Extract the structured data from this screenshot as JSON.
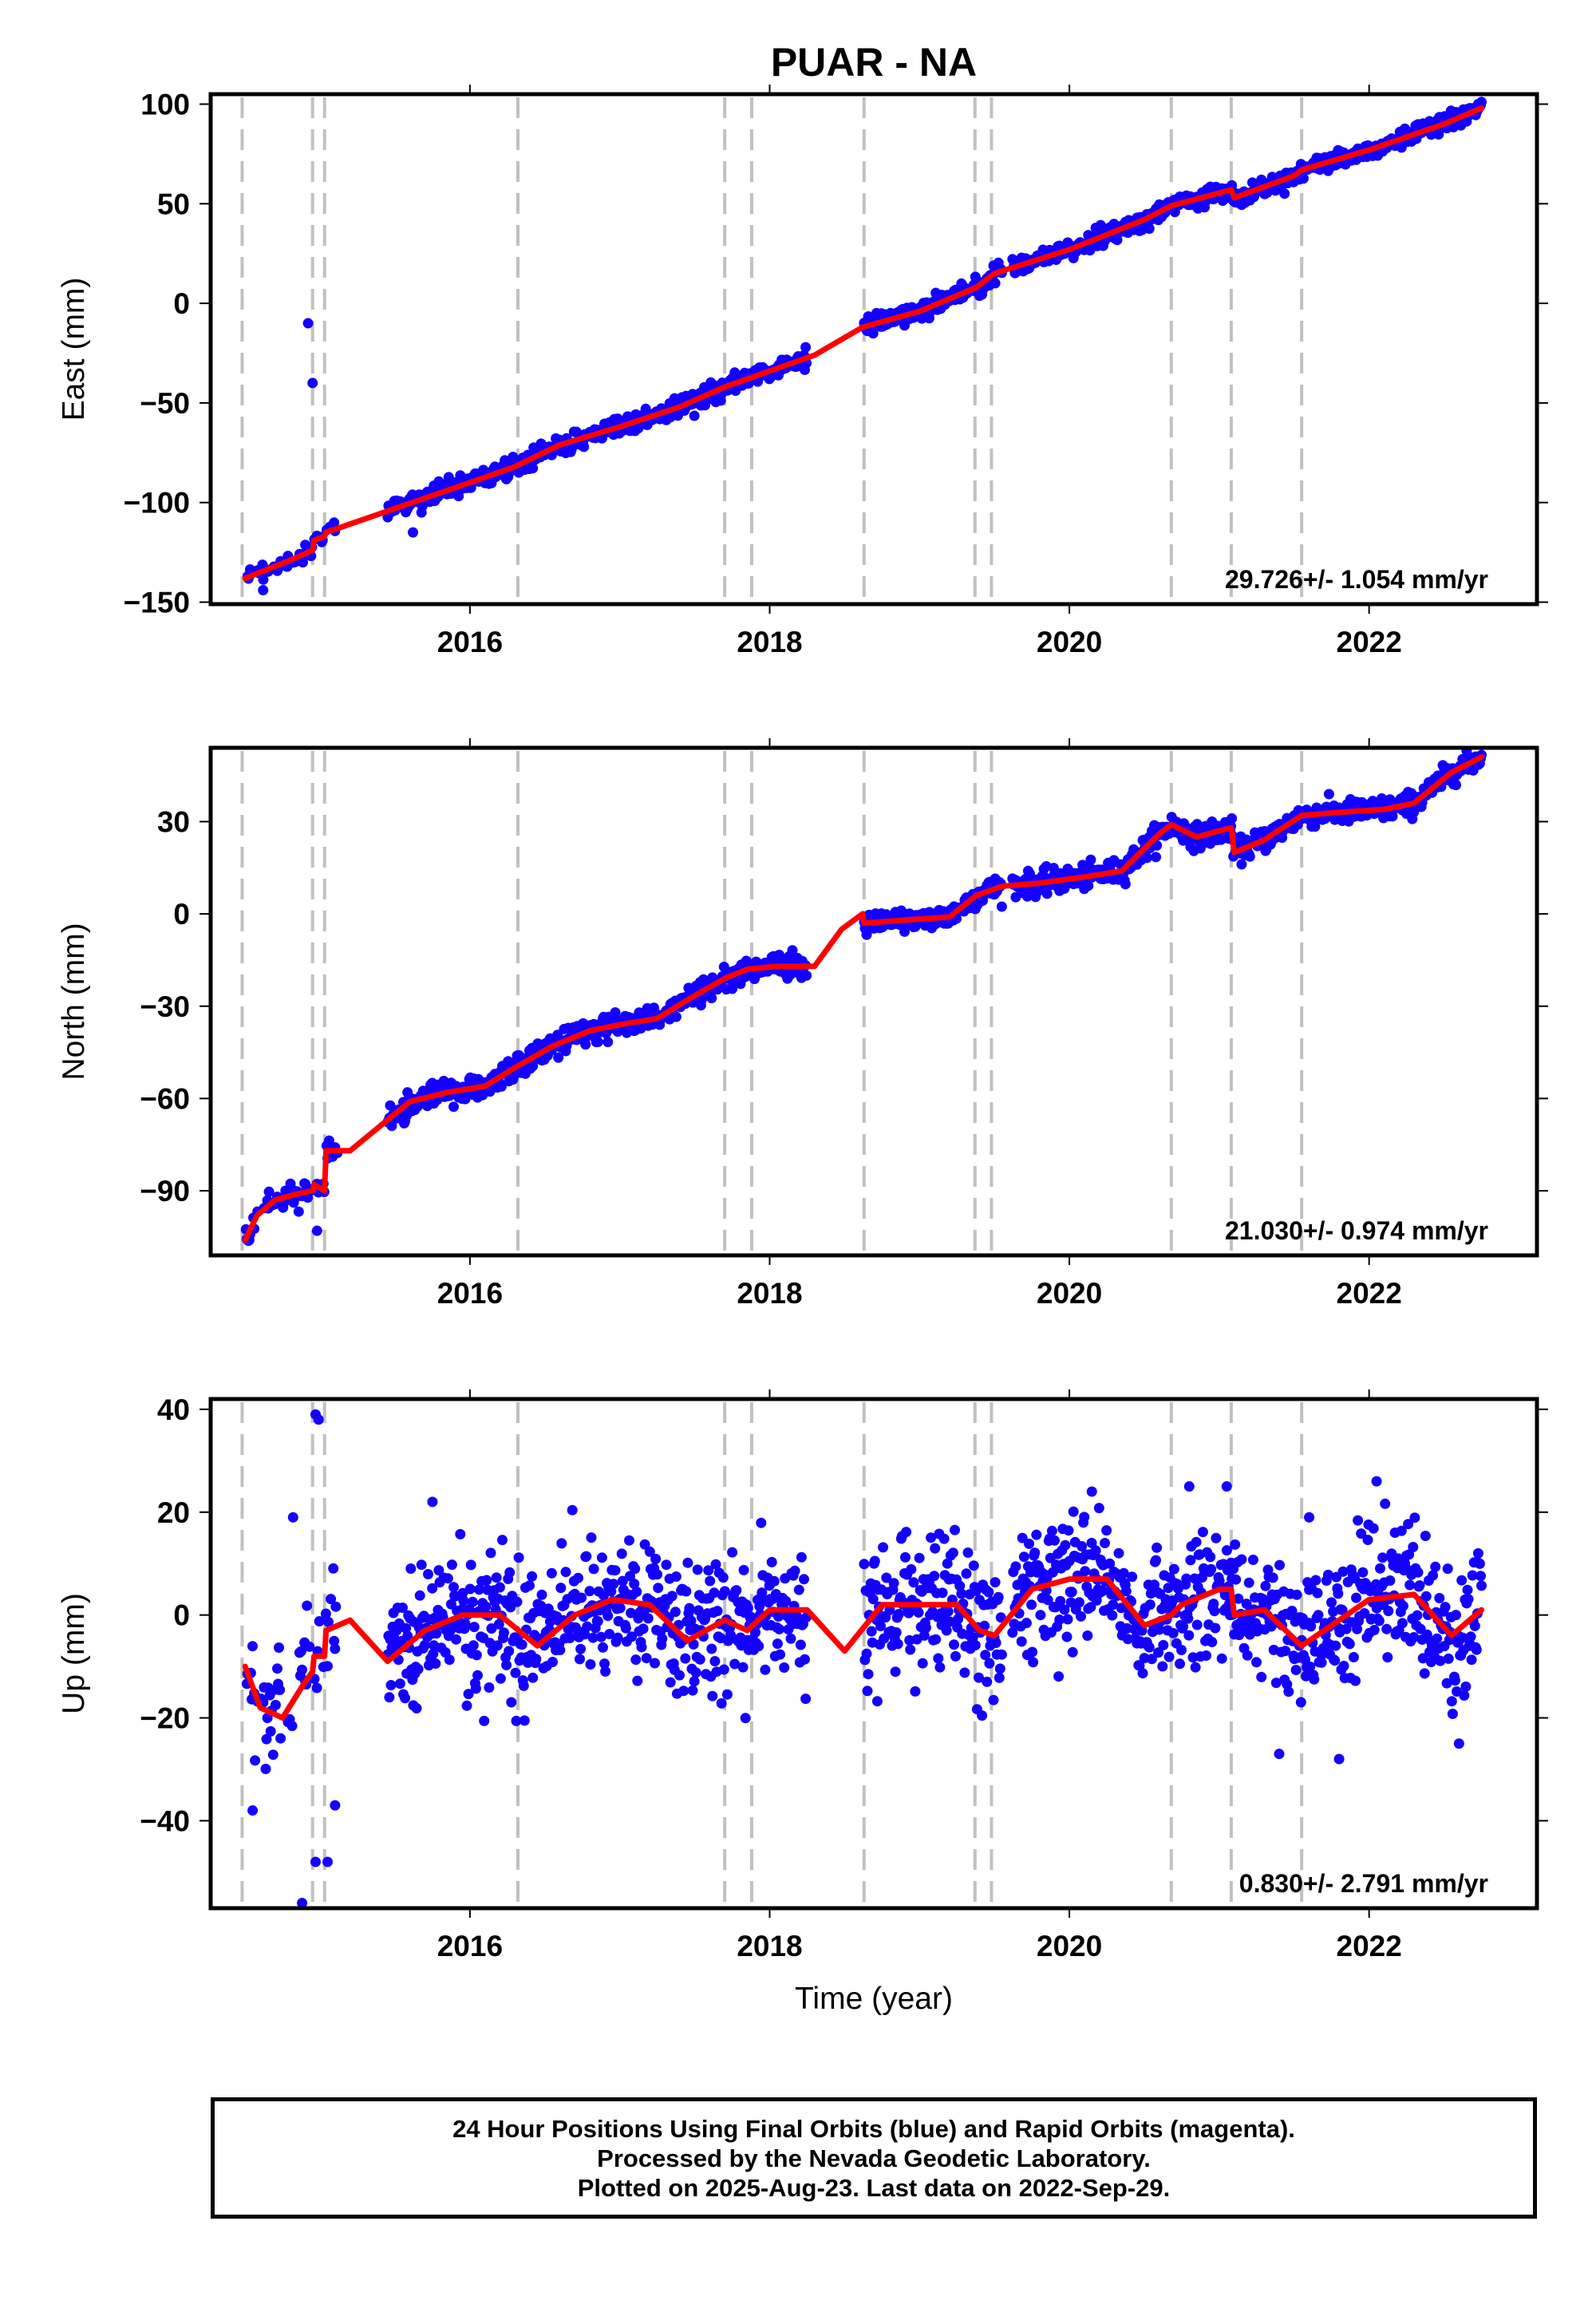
{
  "title": "PUAR - NA",
  "x_axis_label": "Time (year)",
  "footer": {
    "line1": "24 Hour Positions Using Final Orbits (blue) and Rapid Orbits (magenta).",
    "line2": "Processed by the Nevada Geodetic Laboratory.",
    "line3": "Plotted on 2025-Aug-23. Last data on 2022-Sep-29."
  },
  "colors": {
    "points": "#1400ff",
    "model": "#ff0000",
    "event_lines": "#c0c0c0"
  },
  "chart_data": [
    {
      "type": "scatter",
      "ylabel": "East (mm)",
      "xlim": [
        2014.27,
        2023.12
      ],
      "ylim": [
        -151,
        105
      ],
      "yticks": [
        -150,
        -100,
        -50,
        0,
        50,
        100
      ],
      "ytick_labels": [
        "−150",
        "−100",
        "−50",
        "0",
        "50",
        "100"
      ],
      "xticks": [
        2016,
        2018,
        2020,
        2022
      ],
      "xtick_labels": [
        "2016",
        "2018",
        "2020",
        "2022"
      ],
      "grid": false,
      "rate_label": "29.726+/- 1.054 mm/yr",
      "series": [
        {
          "kind": "model",
          "x": [
            2014.5,
            2014.8,
            2014.95,
            2014.96,
            2015.03,
            2015.04,
            2015.5,
            2016.0,
            2016.3,
            2016.6,
            2017.0,
            2017.4,
            2017.7,
            2017.85,
            2018.3,
            2018.62,
            2019.0,
            2019.38,
            2019.5,
            2020.0,
            2020.5,
            2020.68,
            2021.08,
            2021.1,
            2021.5,
            2021.55,
            2022.0,
            2022.5,
            2022.75
          ],
          "y": [
            -138,
            -129,
            -124,
            -119,
            -117,
            -115,
            -103,
            -90,
            -82,
            -71,
            -62,
            -52,
            -42,
            -38,
            -26,
            -12,
            -4,
            8,
            15,
            27,
            42,
            49,
            57,
            53,
            64,
            67,
            77,
            90,
            98
          ]
        },
        {
          "kind": "observations",
          "outliers": [
            {
              "x": 2014.92,
              "y": -10
            },
            {
              "x": 2014.95,
              "y": -40
            },
            {
              "x": 2014.62,
              "y": -144
            },
            {
              "x": 2015.62,
              "y": -115
            }
          ]
        }
      ]
    },
    {
      "type": "scatter",
      "ylabel": "North (mm)",
      "xlim": [
        2014.27,
        2023.12
      ],
      "ylim": [
        -111,
        54
      ],
      "yticks": [
        -90,
        -60,
        -30,
        0,
        30
      ],
      "ytick_labels": [
        "−90",
        "−60",
        "−30",
        "0",
        "30"
      ],
      "xticks": [
        2016,
        2018,
        2020,
        2022
      ],
      "xtick_labels": [
        "2016",
        "2018",
        "2020",
        "2022"
      ],
      "grid": false,
      "rate_label": "21.030+/- 0.974 mm/yr",
      "series": [
        {
          "kind": "model",
          "x": [
            2014.5,
            2014.58,
            2014.7,
            2014.85,
            2014.95,
            2014.96,
            2015.03,
            2015.04,
            2015.2,
            2015.4,
            2015.6,
            2015.85,
            2016.1,
            2016.3,
            2016.55,
            2016.8,
            2017.0,
            2017.25,
            2017.45,
            2017.7,
            2017.85,
            2018.05,
            2018.3,
            2018.48,
            2018.62,
            2018.63,
            2018.9,
            2019.2,
            2019.38,
            2019.55,
            2019.8,
            2020.1,
            2020.35,
            2020.6,
            2020.68,
            2020.85,
            2021.0,
            2021.08,
            2021.1,
            2021.3,
            2021.55,
            2021.8,
            2022.1,
            2022.3,
            2022.55,
            2022.75
          ],
          "y": [
            -106,
            -98,
            -93,
            -91,
            -90,
            -88,
            -90,
            -77,
            -77,
            -69,
            -61,
            -58,
            -56,
            -50,
            -43,
            -38,
            -36,
            -34,
            -28,
            -21,
            -18,
            -17,
            -17,
            -5,
            0,
            -3,
            -2,
            -1,
            6,
            9,
            10,
            12,
            14,
            26,
            29,
            25,
            27,
            28,
            20,
            24,
            32,
            33,
            34,
            36,
            46,
            51
          ]
        },
        {
          "kind": "observations",
          "outliers": [
            {
              "x": 2014.98,
              "y": -103
            }
          ]
        }
      ]
    },
    {
      "type": "scatter",
      "ylabel": "Up (mm)",
      "xlim": [
        2014.27,
        2023.12
      ],
      "ylim": [
        -57,
        42
      ],
      "yticks": [
        -40,
        -20,
        0,
        20,
        40
      ],
      "ytick_labels": [
        "−40",
        "−20",
        "0",
        "20",
        "40"
      ],
      "xticks": [
        2016,
        2018,
        2020,
        2022
      ],
      "xtick_labels": [
        "2016",
        "2018",
        "2020",
        "2022"
      ],
      "grid": false,
      "rate_label": "0.830+/- 2.791 mm/yr",
      "series": [
        {
          "kind": "model",
          "x": [
            2014.5,
            2014.6,
            2014.75,
            2014.9,
            2014.95,
            2014.96,
            2015.03,
            2015.04,
            2015.2,
            2015.45,
            2015.7,
            2015.95,
            2016.2,
            2016.45,
            2016.7,
            2016.95,
            2017.2,
            2017.45,
            2017.7,
            2017.85,
            2018.0,
            2018.25,
            2018.5,
            2018.75,
            2019.0,
            2019.25,
            2019.4,
            2019.5,
            2019.75,
            2020.0,
            2020.25,
            2020.5,
            2020.68,
            2020.75,
            2021.0,
            2021.08,
            2021.1,
            2021.3,
            2021.55,
            2021.8,
            2022.0,
            2022.3,
            2022.55,
            2022.75
          ],
          "y": [
            -10,
            -18,
            -20,
            -13,
            -11,
            -8,
            -8,
            -3,
            -1,
            -9,
            -3,
            0,
            0,
            -6,
            0,
            3,
            2,
            -5,
            -1,
            -3,
            1,
            1,
            -7,
            2,
            2,
            2,
            -3,
            -4,
            5,
            7,
            7,
            -2,
            0,
            2,
            5,
            5,
            0,
            1,
            -6,
            -1,
            3,
            4,
            -4,
            1
          ]
        },
        {
          "kind": "observations",
          "outliers": [
            {
              "x": 2014.97,
              "y": 39
            },
            {
              "x": 2014.99,
              "y": 38
            },
            {
              "x": 2014.88,
              "y": -56
            },
            {
              "x": 2014.97,
              "y": -48
            },
            {
              "x": 2015.05,
              "y": -48
            },
            {
              "x": 2014.82,
              "y": 19
            },
            {
              "x": 2015.1,
              "y": -37
            },
            {
              "x": 2014.55,
              "y": -38
            },
            {
              "x": 2015.75,
              "y": 22
            },
            {
              "x": 2020.15,
              "y": 24
            },
            {
              "x": 2020.8,
              "y": 25
            },
            {
              "x": 2021.05,
              "y": 25
            },
            {
              "x": 2021.6,
              "y": 19
            },
            {
              "x": 2022.05,
              "y": 26
            },
            {
              "x": 2021.4,
              "y": -27
            },
            {
              "x": 2021.8,
              "y": -28
            },
            {
              "x": 2022.6,
              "y": -25
            }
          ]
        }
      ]
    }
  ],
  "event_times": [
    2014.48,
    2014.95,
    2015.03,
    2016.32,
    2017.7,
    2017.88,
    2018.63,
    2019.37,
    2019.48,
    2020.68,
    2021.08,
    2021.55
  ]
}
